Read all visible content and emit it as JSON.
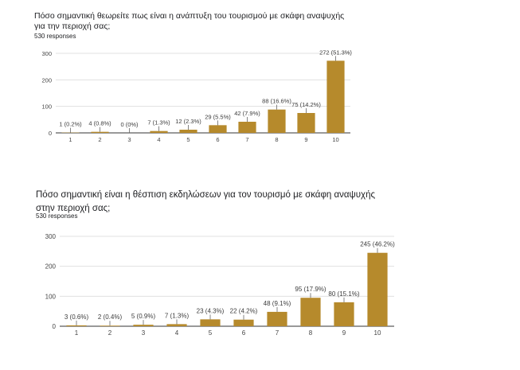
{
  "chart_data": [
    {
      "type": "bar",
      "title": "Πόσο σημαντική θεωρείτε πως είναι η ανάπτυξη του τουρισμού με σκάφη αναψυχής για την περιοχή σας;",
      "responses": "530 responses",
      "categories": [
        "1",
        "2",
        "3",
        "4",
        "5",
        "6",
        "7",
        "8",
        "9",
        "10"
      ],
      "values": [
        1,
        4,
        0,
        7,
        12,
        29,
        42,
        88,
        75,
        272
      ],
      "data_labels": [
        "1 (0.2%)",
        "4 (0.8%)",
        "0 (0%)",
        "7 (1.3%)",
        "12 (2.3%)",
        "29 (5.5%)",
        "42 (7.9%)",
        "88 (16.6%)",
        "75 (14.2%)",
        "272 (51.3%)"
      ],
      "y_ticks": [
        "0",
        "100",
        "200",
        "300"
      ],
      "ylim": [
        0,
        300
      ],
      "grid": true,
      "bar_color": "#b68a2c"
    },
    {
      "type": "bar",
      "title": "Πόσο σημαντική είναι η θέσπιση εκδηλώσεων για τον τουρισμό με σκάφη αναψυχής στην περιοχή σας;",
      "responses": "530 responses",
      "categories": [
        "1",
        "2",
        "3",
        "4",
        "5",
        "6",
        "7",
        "8",
        "9",
        "10"
      ],
      "values": [
        3,
        2,
        5,
        7,
        23,
        22,
        48,
        95,
        80,
        245
      ],
      "data_labels": [
        "3 (0.6%)",
        "2 (0.4%)",
        "5 (0.9%)",
        "7 (1.3%)",
        "23 (4.3%)",
        "22 (4.2%)",
        "48 (9.1%)",
        "95 (17.9%)",
        "80 (15.1%)",
        "245 (46.2%)"
      ],
      "y_ticks": [
        "0",
        "100",
        "200",
        "300"
      ],
      "ylim": [
        0,
        300
      ],
      "grid": true,
      "bar_color": "#b68a2c"
    }
  ]
}
